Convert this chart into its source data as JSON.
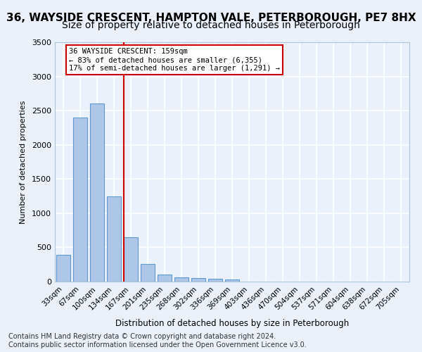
{
  "title": "36, WAYSIDE CRESCENT, HAMPTON VALE, PETERBOROUGH, PE7 8HX",
  "subtitle": "Size of property relative to detached houses in Peterborough",
  "xlabel": "Distribution of detached houses by size in Peterborough",
  "ylabel": "Number of detached properties",
  "categories": [
    "33sqm",
    "67sqm",
    "100sqm",
    "134sqm",
    "167sqm",
    "201sqm",
    "235sqm",
    "268sqm",
    "302sqm",
    "336sqm",
    "369sqm",
    "403sqm",
    "436sqm",
    "470sqm",
    "504sqm",
    "537sqm",
    "571sqm",
    "604sqm",
    "638sqm",
    "672sqm",
    "705sqm"
  ],
  "values": [
    390,
    2400,
    2600,
    1250,
    650,
    260,
    105,
    60,
    55,
    40,
    30,
    0,
    0,
    0,
    0,
    0,
    0,
    0,
    0,
    0,
    0
  ],
  "bar_color": "#aec6e8",
  "bar_edge_color": "#5b9bd5",
  "vline_color": "#cc0000",
  "annotation_line1": "36 WAYSIDE CRESCENT: 159sqm",
  "annotation_line2": "← 83% of detached houses are smaller (6,355)",
  "annotation_line3": "17% of semi-detached houses are larger (1,291) →",
  "annotation_box_color": "#ffffff",
  "annotation_box_edge_color": "#cc0000",
  "ylim": [
    0,
    3500
  ],
  "yticks": [
    0,
    500,
    1000,
    1500,
    2000,
    2500,
    3000,
    3500
  ],
  "bg_color": "#eaf1fb",
  "plot_bg_color": "#eaf1fb",
  "grid_color": "#ffffff",
  "title_fontsize": 11,
  "subtitle_fontsize": 10,
  "footer_text": "Contains HM Land Registry data © Crown copyright and database right 2024.\nContains public sector information licensed under the Open Government Licence v3.0.",
  "footer_fontsize": 7
}
